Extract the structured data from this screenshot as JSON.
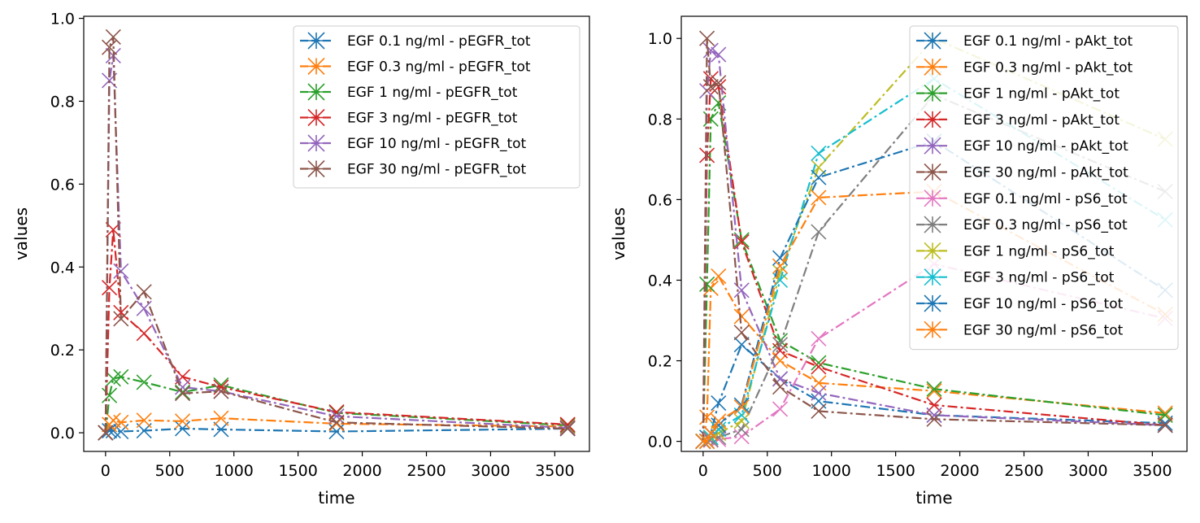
{
  "chart_data": [
    {
      "type": "line",
      "xlabel": "time",
      "ylabel": "values",
      "xlim": [
        -170,
        3770
      ],
      "ylim": [
        -0.045,
        1.005
      ],
      "xticks": [
        0,
        500,
        1000,
        1500,
        2000,
        2500,
        3000,
        3500
      ],
      "yticks": [
        0.0,
        0.2,
        0.4,
        0.6,
        0.8,
        1.0
      ],
      "ytick_labels": [
        "0.0",
        "0.2",
        "0.4",
        "0.6",
        "0.8",
        "1.0"
      ],
      "grid": false,
      "legend_position": "top-right",
      "series": [
        {
          "name": "EGF 0.1 ng/ml - pEGFR_tot",
          "color": "#1f77b4",
          "x": [
            0,
            30,
            60,
            120,
            300,
            600,
            900,
            1800,
            3600
          ],
          "y": [
            0.0,
            0.005,
            0.005,
            0.003,
            0.005,
            0.01,
            0.008,
            0.003,
            0.01
          ]
        },
        {
          "name": "EGF 0.3 ng/ml - pEGFR_tot",
          "color": "#ff7f0e",
          "x": [
            0,
            30,
            60,
            120,
            300,
            600,
            900,
            1800,
            3600
          ],
          "y": [
            0.0,
            0.02,
            0.03,
            0.025,
            0.03,
            0.028,
            0.035,
            0.022,
            0.015
          ]
        },
        {
          "name": "EGF 1 ng/ml - pEGFR_tot",
          "color": "#2ca02c",
          "x": [
            0,
            30,
            60,
            120,
            300,
            600,
            900,
            1800,
            3600
          ],
          "y": [
            0.0,
            0.09,
            0.13,
            0.135,
            0.122,
            0.098,
            0.115,
            0.048,
            0.018
          ]
        },
        {
          "name": "EGF 3 ng/ml - pEGFR_tot",
          "color": "#d62728",
          "x": [
            0,
            30,
            60,
            120,
            300,
            600,
            900,
            1800,
            3600
          ],
          "y": [
            0.0,
            0.35,
            0.49,
            0.29,
            0.24,
            0.135,
            0.11,
            0.05,
            0.02
          ]
        },
        {
          "name": "EGF 10 ng/ml - pEGFR_tot",
          "color": "#9467bd",
          "x": [
            0,
            30,
            60,
            120,
            300,
            600,
            900,
            1800,
            3600
          ],
          "y": [
            0.0,
            0.85,
            0.91,
            0.39,
            0.3,
            0.11,
            0.1,
            0.04,
            0.012
          ]
        },
        {
          "name": "EGF 30 ng/ml - pEGFR_tot",
          "color": "#8c564b",
          "x": [
            0,
            30,
            60,
            120,
            300,
            600,
            900,
            1800,
            3600
          ],
          "y": [
            0.0,
            0.93,
            0.955,
            0.275,
            0.34,
            0.095,
            0.1,
            0.025,
            0.01
          ]
        }
      ]
    },
    {
      "type": "line",
      "xlabel": "time",
      "ylabel": "values",
      "xlim": [
        -170,
        3770
      ],
      "ylim": [
        -0.025,
        1.055
      ],
      "xticks": [
        0,
        500,
        1000,
        1500,
        2000,
        2500,
        3000,
        3500
      ],
      "yticks": [
        0.0,
        0.2,
        0.4,
        0.6,
        0.8,
        1.0
      ],
      "ytick_labels": [
        "0.0",
        "0.2",
        "0.4",
        "0.6",
        "0.8",
        "1.0"
      ],
      "grid": false,
      "legend_position": "top-right",
      "series": [
        {
          "name": "EGF 0.1 ng/ml - pAkt_tot",
          "color": "#1f77b4",
          "x": [
            0,
            30,
            60,
            120,
            300,
            600,
            900,
            1800,
            3600
          ],
          "y": [
            0.0,
            0.01,
            0.02,
            0.095,
            0.24,
            0.155,
            0.1,
            0.065,
            0.045
          ]
        },
        {
          "name": "EGF 0.3 ng/ml - pAkt_tot",
          "color": "#ff7f0e",
          "x": [
            0,
            30,
            60,
            120,
            300,
            600,
            900,
            1800,
            3600
          ],
          "y": [
            0.0,
            0.06,
            0.38,
            0.41,
            0.31,
            0.2,
            0.145,
            0.125,
            0.07
          ]
        },
        {
          "name": "EGF 1 ng/ml - pAkt_tot",
          "color": "#2ca02c",
          "x": [
            0,
            30,
            60,
            120,
            300,
            600,
            900,
            1800,
            3600
          ],
          "y": [
            0.0,
            0.39,
            0.8,
            0.84,
            0.5,
            0.25,
            0.195,
            0.13,
            0.065
          ]
        },
        {
          "name": "EGF 3 ng/ml - pAkt_tot",
          "color": "#d62728",
          "x": [
            0,
            30,
            60,
            120,
            300,
            600,
            900,
            1800,
            3600
          ],
          "y": [
            0.0,
            0.71,
            0.9,
            0.88,
            0.495,
            0.225,
            0.185,
            0.09,
            0.04
          ]
        },
        {
          "name": "EGF 10 ng/ml - pAkt_tot",
          "color": "#9467bd",
          "x": [
            0,
            30,
            60,
            120,
            300,
            600,
            900,
            1800,
            3600
          ],
          "y": [
            0.0,
            0.87,
            0.97,
            0.96,
            0.375,
            0.155,
            0.12,
            0.065,
            0.04
          ]
        },
        {
          "name": "EGF 30 ng/ml - pAkt_tot",
          "color": "#8c564b",
          "x": [
            0,
            30,
            60,
            120,
            300,
            600,
            900,
            1800,
            3600
          ],
          "y": [
            0.0,
            1.0,
            0.88,
            0.89,
            0.27,
            0.135,
            0.075,
            0.055,
            0.04
          ]
        },
        {
          "name": "EGF 0.1 ng/ml - pS6_tot",
          "color": "#e377c2",
          "x": [
            0,
            30,
            60,
            120,
            300,
            600,
            900,
            1800,
            3600
          ],
          "y": [
            0.0,
            0.0,
            0.003,
            0.005,
            0.012,
            0.08,
            0.255,
            0.44,
            0.305
          ]
        },
        {
          "name": "EGF 0.3 ng/ml - pS6_tot",
          "color": "#7f7f7f",
          "x": [
            0,
            30,
            60,
            120,
            300,
            600,
            900,
            1800,
            3600
          ],
          "y": [
            0.0,
            0.0,
            0.005,
            0.01,
            0.03,
            0.24,
            0.52,
            0.86,
            0.62
          ]
        },
        {
          "name": "EGF 1 ng/ml - pS6_tot",
          "color": "#bcbd22",
          "x": [
            0,
            30,
            60,
            120,
            300,
            600,
            900,
            1800,
            3600
          ],
          "y": [
            0.0,
            0.0,
            0.01,
            0.02,
            0.05,
            0.42,
            0.68,
            1.0,
            0.75
          ]
        },
        {
          "name": "EGF 3 ng/ml - pS6_tot",
          "color": "#17becf",
          "x": [
            0,
            30,
            60,
            120,
            300,
            600,
            900,
            1800,
            3600
          ],
          "y": [
            0.0,
            0.0,
            0.01,
            0.03,
            0.065,
            0.4,
            0.715,
            0.9,
            0.55
          ]
        },
        {
          "name": "EGF 10 ng/ml - pS6_tot",
          "color": "#1f77b4",
          "x": [
            0,
            30,
            60,
            120,
            300,
            600,
            900,
            1800,
            3600
          ],
          "y": [
            0.0,
            0.0,
            0.02,
            0.04,
            0.09,
            0.455,
            0.655,
            0.745,
            0.375
          ]
        },
        {
          "name": "EGF 30 ng/ml - pS6_tot",
          "color": "#ff7f0e",
          "x": [
            0,
            30,
            60,
            120,
            300,
            600,
            900,
            1800,
            3600
          ],
          "y": [
            0.0,
            0.0,
            0.02,
            0.05,
            0.085,
            0.435,
            0.605,
            0.62,
            0.315
          ]
        }
      ]
    }
  ]
}
